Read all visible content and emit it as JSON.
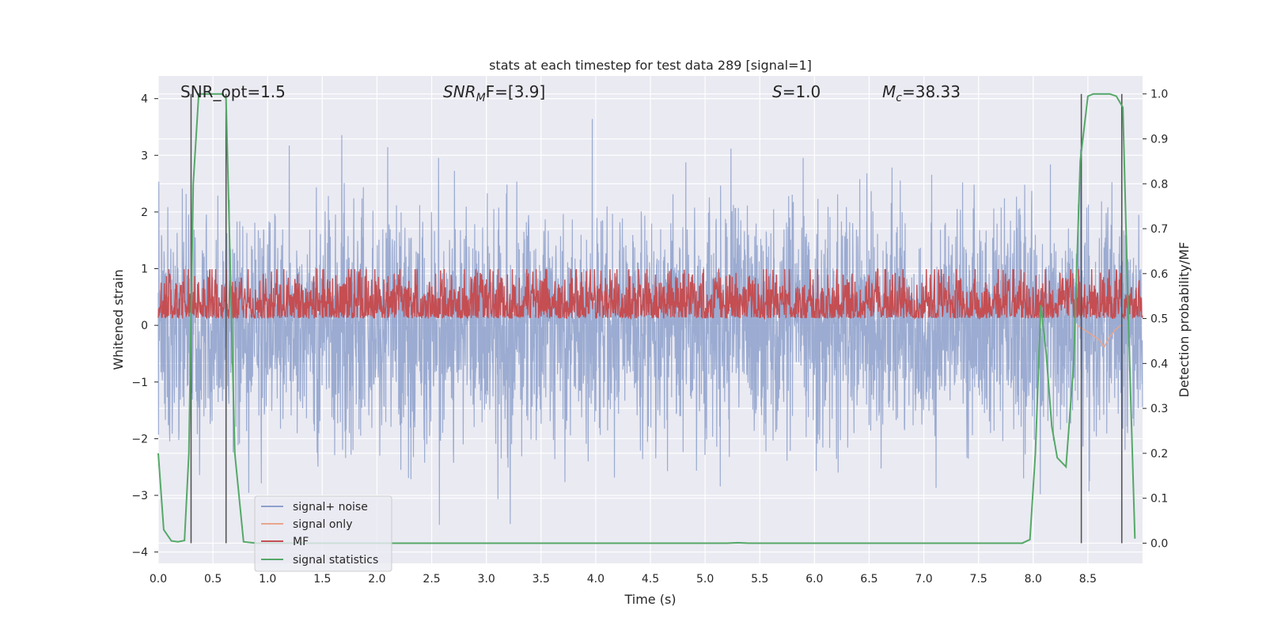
{
  "chart_data": {
    "type": "line",
    "title": "stats at each timestep for test data 289 [signal=1]",
    "xlabel": "Time (s)",
    "ylabel": "Whitened strain",
    "y2label": "Detection probability/MF",
    "xlim": [
      0.0,
      9.0
    ],
    "ylim": [
      -4.2,
      4.4
    ],
    "y2lim": [
      -0.045,
      1.04
    ],
    "xticks": [
      "0.0",
      "0.5",
      "1.0",
      "1.5",
      "2.0",
      "2.5",
      "3.0",
      "3.5",
      "4.0",
      "4.5",
      "5.0",
      "5.5",
      "6.0",
      "6.5",
      "7.0",
      "7.5",
      "8.0",
      "8.5"
    ],
    "yticks": [
      "4",
      "3",
      "2",
      "1",
      "0",
      "−1",
      "−2",
      "−3",
      "−4"
    ],
    "y2ticks": [
      "1.0",
      "0.9",
      "0.8",
      "0.7",
      "0.6",
      "0.5",
      "0.4",
      "0.3",
      "0.2",
      "0.1",
      "0.0"
    ],
    "grid": true,
    "legend_position": "lower-left",
    "annotations": {
      "snr_opt": "SNR_opt=1.5",
      "snr_mf_main": "SNR",
      "snr_mf_sub": "M",
      "snr_mf_rest": "F=[3.9]",
      "s_main": "S",
      "s_rest": "=1.0",
      "mc_main": "M",
      "mc_sub": "c",
      "mc_rest": "=38.33"
    },
    "series": [
      {
        "name": "signal+ noise",
        "color": "#8da0cb",
        "description": "dense whitened strain noise, roughly uniform envelope",
        "envelope_upper": 2.3,
        "envelope_lower": -2.3,
        "max_upper": 4.0,
        "min_lower": -3.85
      },
      {
        "name": "signal only",
        "color": "#e8a68c",
        "x": [
          8.4,
          8.5,
          8.6,
          8.65,
          8.7,
          8.75,
          8.8
        ],
        "y": [
          0.0,
          -0.12,
          -0.25,
          -0.38,
          -0.2,
          -0.08,
          0.0
        ]
      },
      {
        "name": "MF",
        "color": "#c44e52",
        "description": "matched-filter output on secondary axis",
        "baseline_prob": 0.53,
        "amplitude_prob": 0.06
      },
      {
        "name": "signal statistics",
        "color": "#55a868",
        "x": [
          0.0,
          0.05,
          0.12,
          0.18,
          0.24,
          0.28,
          0.32,
          0.37,
          0.42,
          0.5,
          0.58,
          0.62,
          0.66,
          0.7,
          0.78,
          0.9,
          1.0,
          2.0,
          3.0,
          4.0,
          5.0,
          5.2,
          5.3,
          5.4,
          6.0,
          7.0,
          7.9,
          7.97,
          8.02,
          8.07,
          8.12,
          8.17,
          8.22,
          8.3,
          8.37,
          8.43,
          8.5,
          8.55,
          8.6,
          8.7,
          8.76,
          8.82,
          8.87,
          8.93
        ],
        "y": [
          0.2,
          0.03,
          0.005,
          0.003,
          0.006,
          0.2,
          0.8,
          1.0,
          1.0,
          1.0,
          1.0,
          0.99,
          0.6,
          0.2,
          0.003,
          0.0,
          0.0,
          0.0,
          0.0,
          0.0,
          0.0,
          0.0,
          0.001,
          0.0,
          0.0,
          0.0,
          0.0,
          0.008,
          0.2,
          0.53,
          0.42,
          0.26,
          0.19,
          0.17,
          0.4,
          0.85,
          0.995,
          1.0,
          1.0,
          1.0,
          0.995,
          0.97,
          0.5,
          0.01
        ]
      }
    ],
    "vertical_lines": [
      0.3,
      0.62,
      8.44,
      8.81
    ]
  }
}
